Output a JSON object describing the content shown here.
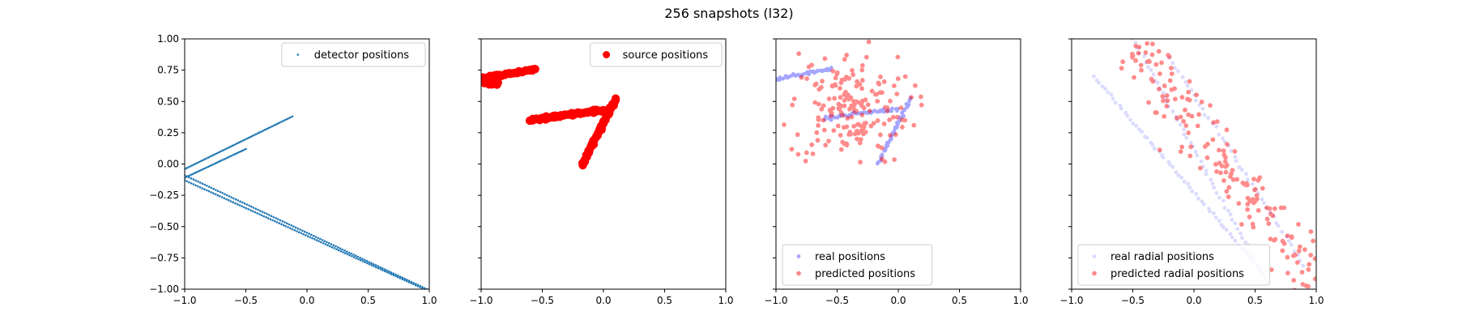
{
  "title": "256 snapshots (l32)",
  "colors": {
    "blue": "#1f77b4",
    "red": "#ff0000",
    "real_blue": "#0000ff",
    "light_blue": "#9999ff"
  },
  "chart_data": [
    {
      "type": "scatter",
      "xlim": [
        -1.0,
        1.0
      ],
      "ylim": [
        -1.0,
        1.0
      ],
      "x_ticks": [
        "−1.0",
        "−0.5",
        "0.0",
        "0.5",
        "1.0"
      ],
      "y_ticks": [
        "1.00",
        "0.75",
        "0.50",
        "0.25",
        "0.00",
        "−0.25",
        "−0.50",
        "−0.75",
        "−1.00"
      ],
      "show_y_tick_labels": true,
      "legend_position": "upper right",
      "series": [
        {
          "name": "detector positions",
          "color": "#1f77b4",
          "marker": "small-dot",
          "segments": [
            {
              "from": [
                -1.0,
                -0.04
              ],
              "to": [
                -0.12,
                0.38
              ],
              "count": 60
            },
            {
              "from": [
                -1.0,
                -0.11
              ],
              "to": [
                -0.5,
                0.12
              ],
              "count": 35
            },
            {
              "from": [
                -1.0,
                -0.09
              ],
              "to": [
                0.98,
                -1.0
              ],
              "count": 110
            },
            {
              "from": [
                -1.0,
                -0.13
              ],
              "to": [
                0.96,
                -1.0
              ],
              "count": 110
            }
          ]
        }
      ]
    },
    {
      "type": "scatter",
      "xlim": [
        -1.0,
        1.0
      ],
      "ylim": [
        -1.0,
        1.0
      ],
      "x_ticks": [
        "−1.0",
        "−0.5",
        "0.0",
        "0.5",
        "1.0"
      ],
      "y_ticks": [
        "1.00",
        "0.75",
        "0.50",
        "0.25",
        "0.00",
        "−0.25",
        "−0.50",
        "−0.75",
        "−1.00"
      ],
      "show_y_tick_labels": false,
      "legend_position": "upper right",
      "series": [
        {
          "name": "source positions",
          "color": "#ff0000",
          "marker": "large-dot",
          "segments": [
            {
              "from": [
                -1.0,
                0.68
              ],
              "to": [
                -0.55,
                0.76
              ],
              "count": 45
            },
            {
              "from": [
                -0.98,
                0.65
              ],
              "to": [
                -0.86,
                0.63
              ],
              "count": 8
            },
            {
              "from": [
                -0.6,
                0.35
              ],
              "to": [
                0.0,
                0.43
              ],
              "count": 55
            },
            {
              "from": [
                -0.17,
                0.0
              ],
              "to": [
                0.1,
                0.52
              ],
              "count": 55
            }
          ]
        }
      ]
    },
    {
      "type": "scatter",
      "xlim": [
        -1.0,
        1.0
      ],
      "ylim": [
        -1.0,
        1.0
      ],
      "x_ticks": [
        "−1.0",
        "−0.5",
        "0.0",
        "0.5",
        "1.0"
      ],
      "y_ticks": [
        "1.00",
        "0.75",
        "0.50",
        "0.25",
        "0.00",
        "−0.25",
        "−0.50",
        "−0.75",
        "−1.00"
      ],
      "show_y_tick_labels": false,
      "legend_position": "lower left",
      "series": [
        {
          "name": "real positions",
          "color": "#0000ff",
          "marker": "faint-dot",
          "segments": [
            {
              "from": [
                -1.0,
                0.68
              ],
              "to": [
                -0.55,
                0.76
              ],
              "count": 40
            },
            {
              "from": [
                -0.6,
                0.37
              ],
              "to": [
                0.0,
                0.44
              ],
              "count": 45
            },
            {
              "from": [
                -0.17,
                0.0
              ],
              "to": [
                0.1,
                0.52
              ],
              "count": 45
            }
          ]
        },
        {
          "name": "predicted positions",
          "color": "#ff0000",
          "marker": "hollow-dot",
          "cloud": {
            "center": [
              -0.4,
              0.45
            ],
            "spread": [
              0.55,
              0.5
            ],
            "count": 180,
            "range_x": [
              -1.0,
              0.25
            ],
            "range_y": [
              -0.08,
              0.98
            ]
          }
        }
      ]
    },
    {
      "type": "scatter",
      "xlim": [
        -1.0,
        1.0
      ],
      "ylim": [
        -1.0,
        1.0
      ],
      "x_ticks": [
        "−1.0",
        "−0.5",
        "0.0",
        "0.5",
        "1.0"
      ],
      "y_ticks": [
        "1.00",
        "0.75",
        "0.50",
        "0.25",
        "0.00",
        "−0.25",
        "−0.50",
        "−0.75",
        "−1.00"
      ],
      "show_y_tick_labels": false,
      "legend_position": "lower left",
      "series": [
        {
          "name": "real radial positions",
          "color": "#9999ff",
          "marker": "faint-dot",
          "segments": [
            {
              "from": [
                -0.5,
                1.0
              ],
              "to": [
                0.6,
                -0.95
              ],
              "count": 55
            },
            {
              "from": [
                -0.82,
                0.7
              ],
              "to": [
                0.55,
                -0.85
              ],
              "count": 60
            },
            {
              "from": [
                -0.2,
                0.85
              ],
              "to": [
                0.9,
                -0.8
              ],
              "count": 45
            }
          ]
        },
        {
          "name": "predicted radial positions",
          "color": "#ff0000",
          "marker": "hollow-dot",
          "cloud_along": {
            "from": [
              -0.5,
              0.95
            ],
            "to": [
              1.0,
              -0.95
            ],
            "width": 0.22,
            "count": 170
          }
        }
      ]
    }
  ]
}
